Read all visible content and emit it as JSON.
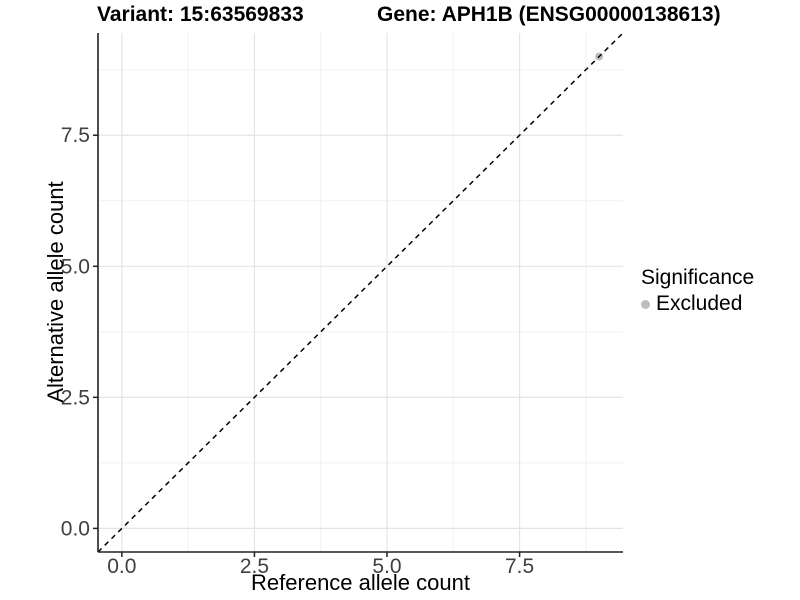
{
  "header": {
    "title_variant": "Variant: 15:63569833",
    "title_gene": "Gene: APH1B (ENSG00000138613)"
  },
  "chart_data": {
    "type": "scatter",
    "title": "Variant: 15:63569833    Gene: APH1B (ENSG00000138613)",
    "xlabel": "Reference allele count",
    "ylabel": "Alternative allele count",
    "xlim": [
      -0.45,
      9.45
    ],
    "ylim": [
      -0.45,
      9.45
    ],
    "x_ticks": {
      "values": [
        0,
        2.5,
        5,
        7.5
      ],
      "labels": [
        "0.0",
        "2.5",
        "5.0",
        "7.5"
      ]
    },
    "y_ticks": {
      "values": [
        0,
        2.5,
        5,
        7.5
      ],
      "labels": [
        "0.0",
        "2.5",
        "5.0",
        "7.5"
      ]
    },
    "x_minor_ticks": [
      1.25,
      3.75,
      6.25,
      8.75
    ],
    "y_minor_ticks": [
      1.25,
      3.75,
      6.25,
      8.75
    ],
    "grid": "major and minor, light gray on white panel",
    "reference_line": {
      "kind": "abline",
      "slope": 1,
      "intercept": 0,
      "linetype": "dashed",
      "color": "#000000"
    },
    "series": [
      {
        "name": "Excluded",
        "marker": "circle",
        "color": "#bdbdbd",
        "points": [
          [
            9,
            9
          ]
        ]
      }
    ],
    "legend": {
      "title": "Significance",
      "position": "right",
      "items": [
        {
          "label": "Excluded",
          "color": "#bdbdbd",
          "marker": "circle"
        }
      ]
    },
    "style": {
      "panel_background": "#ffffff",
      "grid_major_color": "#e4e4e4",
      "grid_minor_color": "#f1f1f1",
      "axis_line_color": "#222222",
      "tick_label_color": "#404040",
      "text_color": "#000000"
    }
  }
}
